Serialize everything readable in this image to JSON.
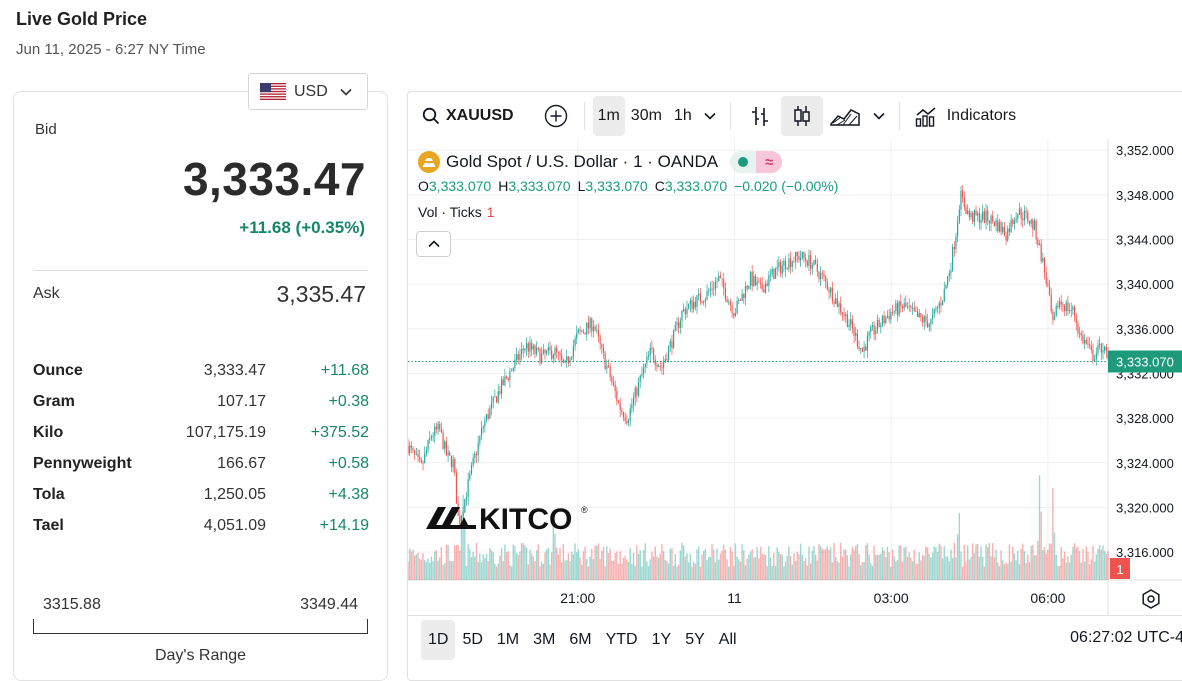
{
  "page": {
    "title": "Live Gold Price",
    "timestamp": "Jun 11, 2025 - 6:27 NY Time"
  },
  "currency": {
    "selected": "USD",
    "flag_icon": "us-flag-icon"
  },
  "quote": {
    "bid_label": "Bid",
    "bid": "3,333.47",
    "change": "+11.68 (+0.35%)",
    "ask_label": "Ask",
    "ask": "3,335.47"
  },
  "units": [
    {
      "name": "Ounce",
      "price": "3,333.47",
      "change": "+11.68"
    },
    {
      "name": "Gram",
      "price": "107.17",
      "change": "+0.38"
    },
    {
      "name": "Kilo",
      "price": "107,175.19",
      "change": "+375.52"
    },
    {
      "name": "Pennyweight",
      "price": "166.67",
      "change": "+0.58"
    },
    {
      "name": "Tola",
      "price": "1,250.05",
      "change": "+4.38"
    },
    {
      "name": "Tael",
      "price": "4,051.09",
      "change": "+14.19"
    }
  ],
  "day_range": {
    "low": "3315.88",
    "high": "3349.44",
    "label": "Day's Range"
  },
  "toolbar": {
    "symbol": "XAUUSD",
    "intervals": [
      "1m",
      "30m",
      "1h"
    ],
    "active_interval": "1m",
    "indicators_label": "Indicators"
  },
  "legend": {
    "name": "Gold Spot / U.S. Dollar · 1 · OANDA",
    "o_label": "O",
    "o": "3,333.070",
    "h_label": "H",
    "h": "3,333.070",
    "l_label": "L",
    "l": "3,333.070",
    "c_label": "C",
    "c": "3,333.070",
    "change": "−0.020 (−0.00%)",
    "vol_label": "Vol · Ticks",
    "vol_value": "1"
  },
  "ranges": [
    "1D",
    "5D",
    "1M",
    "3M",
    "6M",
    "YTD",
    "1Y",
    "5Y",
    "All"
  ],
  "active_range": "1D",
  "clock": "06:27:02 UTC-4",
  "watermark": "KITCO",
  "colors": {
    "up": "#26a69a",
    "down": "#ef5350",
    "change_green": "#16866b",
    "accent": "#1c9a7b"
  },
  "chart_data": {
    "type": "candlestick",
    "yaxis": {
      "ticks": [
        "3,352.000",
        "3,348.000",
        "3,344.000",
        "3,340.000",
        "3,336.000",
        "3,332.000",
        "3,328.000",
        "3,324.000",
        "3,320.000",
        "3,316.000"
      ],
      "min": 3313.5,
      "max": 3353.0
    },
    "xaxis": {
      "ticks": [
        "21:00",
        "11",
        "03:00",
        "06:00"
      ],
      "tick_hours": [
        21,
        24,
        27,
        30
      ],
      "start_hour": 17.75,
      "end_hour": 31.15
    },
    "last_price": 3333.07,
    "last_price_label": "3,333.070",
    "last_volume_label": "1",
    "price_path": [
      [
        17.75,
        3325.5
      ],
      [
        18.0,
        3323.5
      ],
      [
        18.2,
        3326.5
      ],
      [
        18.35,
        3327.0
      ],
      [
        18.5,
        3324.5
      ],
      [
        18.62,
        3324.0
      ],
      [
        18.72,
        3318.5
      ],
      [
        18.85,
        3321.0
      ],
      [
        19.0,
        3324.0
      ],
      [
        19.2,
        3327.5
      ],
      [
        19.5,
        3330.5
      ],
      [
        19.75,
        3332.5
      ],
      [
        20.0,
        3334.5
      ],
      [
        20.3,
        3333.5
      ],
      [
        20.55,
        3334.0
      ],
      [
        20.75,
        3332.5
      ],
      [
        21.0,
        3335.5
      ],
      [
        21.3,
        3336.5
      ],
      [
        21.45,
        3334.0
      ],
      [
        21.6,
        3332.0
      ],
      [
        21.8,
        3329.0
      ],
      [
        21.95,
        3328.0
      ],
      [
        22.2,
        3331.5
      ],
      [
        22.4,
        3334.0
      ],
      [
        22.6,
        3332.5
      ],
      [
        22.85,
        3335.5
      ],
      [
        23.0,
        3337.5
      ],
      [
        23.25,
        3338.5
      ],
      [
        23.45,
        3339.0
      ],
      [
        23.7,
        3340.5
      ],
      [
        24.0,
        3337.5
      ],
      [
        24.3,
        3340.5
      ],
      [
        24.5,
        3339.5
      ],
      [
        24.75,
        3341.0
      ],
      [
        25.0,
        3342.0
      ],
      [
        25.25,
        3342.5
      ],
      [
        25.45,
        3342.0
      ],
      [
        25.7,
        3340.5
      ],
      [
        25.95,
        3338.5
      ],
      [
        26.2,
        3336.5
      ],
      [
        26.45,
        3334.0
      ],
      [
        26.6,
        3335.5
      ],
      [
        26.8,
        3336.5
      ],
      [
        27.0,
        3337.5
      ],
      [
        27.25,
        3338.0
      ],
      [
        27.5,
        3337.0
      ],
      [
        27.75,
        3336.5
      ],
      [
        28.0,
        3339.0
      ],
      [
        28.15,
        3342.0
      ],
      [
        28.25,
        3345.0
      ],
      [
        28.32,
        3348.0
      ],
      [
        28.5,
        3346.0
      ],
      [
        28.8,
        3346.0
      ],
      [
        29.0,
        3345.5
      ],
      [
        29.2,
        3344.5
      ],
      [
        29.4,
        3346.5
      ],
      [
        29.6,
        3346.0
      ],
      [
        29.75,
        3345.0
      ],
      [
        29.9,
        3342.0
      ],
      [
        30.0,
        3339.5
      ],
      [
        30.1,
        3336.0
      ],
      [
        30.2,
        3338.5
      ],
      [
        30.35,
        3338.0
      ],
      [
        30.5,
        3337.5
      ],
      [
        30.6,
        3335.5
      ],
      [
        30.75,
        3334.5
      ],
      [
        30.85,
        3333.5
      ],
      [
        30.95,
        3334.0
      ],
      [
        31.05,
        3334.5
      ],
      [
        31.15,
        3333.07
      ]
    ],
    "volume_spikes": [
      [
        18.8,
        0.62
      ],
      [
        20.55,
        0.45
      ],
      [
        28.3,
        0.52
      ],
      [
        29.85,
        0.95
      ],
      [
        30.1,
        0.62
      ]
    ]
  }
}
